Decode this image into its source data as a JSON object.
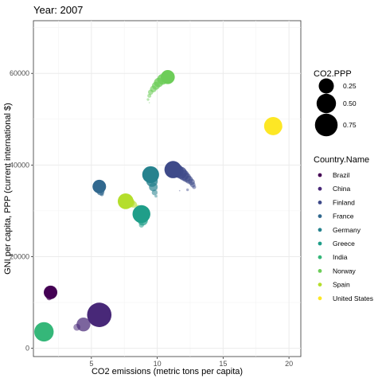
{
  "chart_data": {
    "type": "scatter",
    "title": "Year: 2007",
    "xlabel": "CO2 emissions (metric tons per capita)",
    "ylabel": "GNI per capita, PPP (current international $)",
    "xlim": [
      0.6,
      20.9
    ],
    "ylim": [
      -1800,
      71500
    ],
    "xticks": [
      5,
      10,
      15,
      20
    ],
    "yticks": [
      0,
      20000,
      40000,
      60000
    ],
    "ytick_labels": [
      "0",
      "20000",
      "40000",
      "60000"
    ],
    "grid": true,
    "size_legend": {
      "title": "CO2.PPP",
      "entries": [
        {
          "label": "0.25",
          "value": 0.25
        },
        {
          "label": "0.50",
          "value": 0.5
        },
        {
          "label": "0.75",
          "value": 0.75
        }
      ]
    },
    "color_legend": {
      "title": "Country.Name",
      "position": "right"
    },
    "series": [
      {
        "name": "Brazil",
        "color": "#440154",
        "x": 1.9,
        "y": 12200,
        "size": 0.18,
        "trail": [
          [
            1.8,
            11100
          ]
        ]
      },
      {
        "name": "China",
        "color": "#482878",
        "x": 5.6,
        "y": 7300,
        "size": 0.9,
        "trail": [
          [
            4.4,
            5200
          ],
          [
            3.9,
            4600
          ]
        ]
      },
      {
        "name": "Finland",
        "color": "#3E4A89",
        "x": 11.2,
        "y": 39000,
        "size": 0.36,
        "trail": [
          [
            11.5,
            38700
          ],
          [
            11.8,
            38300
          ],
          [
            12.0,
            37800
          ],
          [
            12.2,
            37300
          ],
          [
            12.4,
            36800
          ],
          [
            12.6,
            36300
          ],
          [
            12.7,
            35700
          ],
          [
            12.8,
            35200
          ],
          [
            12.3,
            34600
          ],
          [
            11.7,
            34400
          ]
        ]
      },
      {
        "name": "France",
        "color": "#31688E",
        "x": 5.6,
        "y": 35300,
        "size": 0.18,
        "trail": [
          [
            5.7,
            34200
          ],
          [
            5.8,
            33600
          ]
        ]
      },
      {
        "name": "Germany",
        "color": "#26828E",
        "x": 9.5,
        "y": 37900,
        "size": 0.34,
        "trail": [
          [
            9.6,
            36500
          ],
          [
            9.7,
            35200
          ],
          [
            9.8,
            34000
          ],
          [
            9.9,
            33200
          ]
        ]
      },
      {
        "name": "Greece",
        "color": "#1F9E89",
        "x": 8.8,
        "y": 29300,
        "size": 0.4,
        "trail": [
          [
            8.9,
            27900
          ],
          [
            8.8,
            26900
          ]
        ]
      },
      {
        "name": "India",
        "color": "#35B779",
        "x": 1.4,
        "y": 3600,
        "size": 0.5,
        "trail": []
      },
      {
        "name": "Norway",
        "color": "#6DCD59",
        "x": 10.8,
        "y": 59200,
        "size": 0.2,
        "trail": [
          [
            10.4,
            58700
          ],
          [
            10.1,
            58000
          ],
          [
            9.9,
            57300
          ],
          [
            9.7,
            56600
          ],
          [
            9.5,
            55900
          ],
          [
            9.4,
            55100
          ],
          [
            9.3,
            54300
          ],
          [
            9.4,
            53600
          ]
        ]
      },
      {
        "name": "Spain",
        "color": "#B4DE2C",
        "x": 7.6,
        "y": 32100,
        "size": 0.28,
        "trail": [
          [
            7.9,
            31800
          ],
          [
            8.2,
            31400
          ],
          [
            8.5,
            31000
          ]
        ]
      },
      {
        "name": "United States",
        "color": "#FDE725",
        "x": 18.8,
        "y": 48500,
        "size": 0.42,
        "trail": [
          [
            19.1,
            48400
          ],
          [
            19.3,
            48200
          ]
        ]
      }
    ]
  }
}
